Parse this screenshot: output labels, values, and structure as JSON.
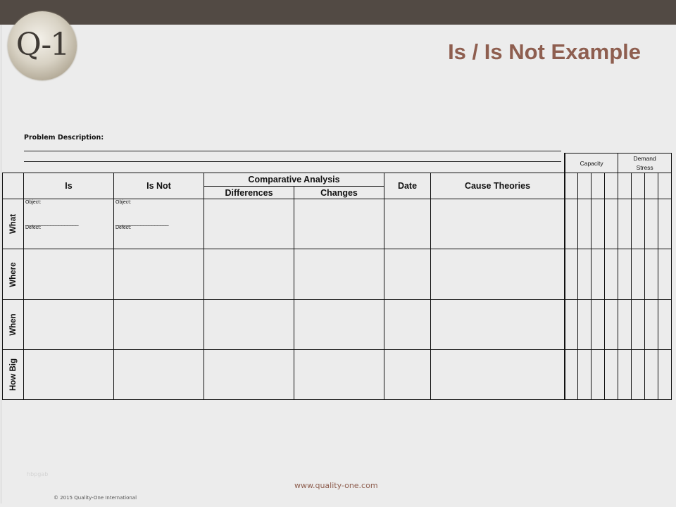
{
  "header": {
    "logo_text": "Q-1",
    "title": "Is / Is Not Example"
  },
  "problem": {
    "label": "Problem Description:"
  },
  "table": {
    "headers": {
      "is": "Is",
      "is_not": "Is Not",
      "comparative": "Comparative Analysis",
      "differences": "Differences",
      "changes": "Changes",
      "date": "Date",
      "cause": "Cause Theories"
    },
    "rows": [
      "What",
      "Where",
      "When",
      "How Big"
    ],
    "what_cell": {
      "object": "Object:",
      "dashes": "___________________",
      "defect": "Defect:"
    }
  },
  "side": {
    "capacity": "Capacity",
    "demand": "Demand Stress"
  },
  "footer": {
    "watermark": "hbpgab",
    "website": "www.quality-one.com",
    "copyright": "© 2015 Quality-One International"
  },
  "colors": {
    "topbar": "#524a44",
    "title": "#8e5e4f",
    "background": "#ececec"
  }
}
